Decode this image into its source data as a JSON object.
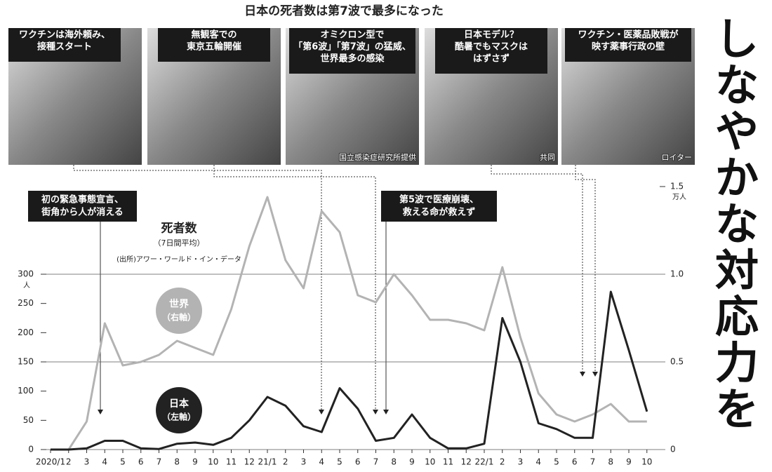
{
  "chart_data": {
    "type": "line",
    "title": "日本の死者数は第7波で最多になった",
    "label": "死者数",
    "sublabel": "（7日間平均）",
    "source": "(出所)アワー・ワールド・イン・データ",
    "categories": [
      "2020/1",
      "2",
      "3",
      "4",
      "5",
      "6",
      "7",
      "8",
      "9",
      "10",
      "11",
      "12",
      "21/1",
      "2",
      "3",
      "4",
      "5",
      "6",
      "7",
      "8",
      "9",
      "10",
      "11",
      "12",
      "22/1",
      "2",
      "3",
      "4",
      "5",
      "6",
      "7",
      "8",
      "9",
      "10"
    ],
    "series": [
      {
        "name": "世界",
        "axis_note": "（右軸）",
        "color": "#b3b3b3",
        "axis": "y2",
        "values": [
          0,
          0,
          0.16,
          0.72,
          0.48,
          0.5,
          0.54,
          0.62,
          0.58,
          0.54,
          0.8,
          1.16,
          1.44,
          1.08,
          0.92,
          1.36,
          1.24,
          0.88,
          0.84,
          1.0,
          0.88,
          0.74,
          0.74,
          0.72,
          0.68,
          1.04,
          0.64,
          0.32,
          0.2,
          0.16,
          0.2,
          0.26,
          0.16,
          0.16
        ]
      },
      {
        "name": "日本",
        "axis_note": "（左軸）",
        "color": "#222222",
        "values": [
          0,
          0,
          2,
          15,
          15,
          2,
          1,
          10,
          12,
          8,
          20,
          50,
          90,
          75,
          40,
          30,
          105,
          70,
          15,
          20,
          60,
          20,
          2,
          2,
          10,
          225,
          150,
          45,
          35,
          20,
          20,
          270,
          170,
          65
        ]
      }
    ],
    "ylim": [
      0,
      450
    ],
    "yticks": [
      0,
      50,
      100,
      150,
      200,
      250,
      300
    ],
    "yunit": "人",
    "y2lim": [
      0,
      1.5
    ],
    "y2ticks": [
      0,
      0.5,
      {
        "value": 1,
        "label": "1.0"
      },
      1.5
    ],
    "y2unit": "万人",
    "annotations": [
      [
        "初の緊急事態宣言、",
        "街角から人が消える"
      ],
      [
        "第5波で医療崩壊、",
        "救える命が救えず"
      ]
    ]
  },
  "panels": [
    {
      "caption": [
        "ワクチンは海外頼み、",
        "接種スタート"
      ]
    },
    {
      "caption": [
        "無観客での",
        "東京五輪開催"
      ]
    },
    {
      "caption": [
        "オミクロン型で",
        "「第6波」「第7波」の猛威、",
        "世界最多の感染"
      ],
      "credit": "国立感染症研究所提供"
    },
    {
      "caption": [
        "日本モデル？",
        "酷暑でもマスクは",
        "はずさず"
      ],
      "credit": "共同"
    },
    {
      "caption": [
        "ワクチン・医薬品敗戦が",
        "映す薬事行政の壁"
      ],
      "credit": "ロイター"
    }
  ],
  "headline": "しなやかな対応力を"
}
